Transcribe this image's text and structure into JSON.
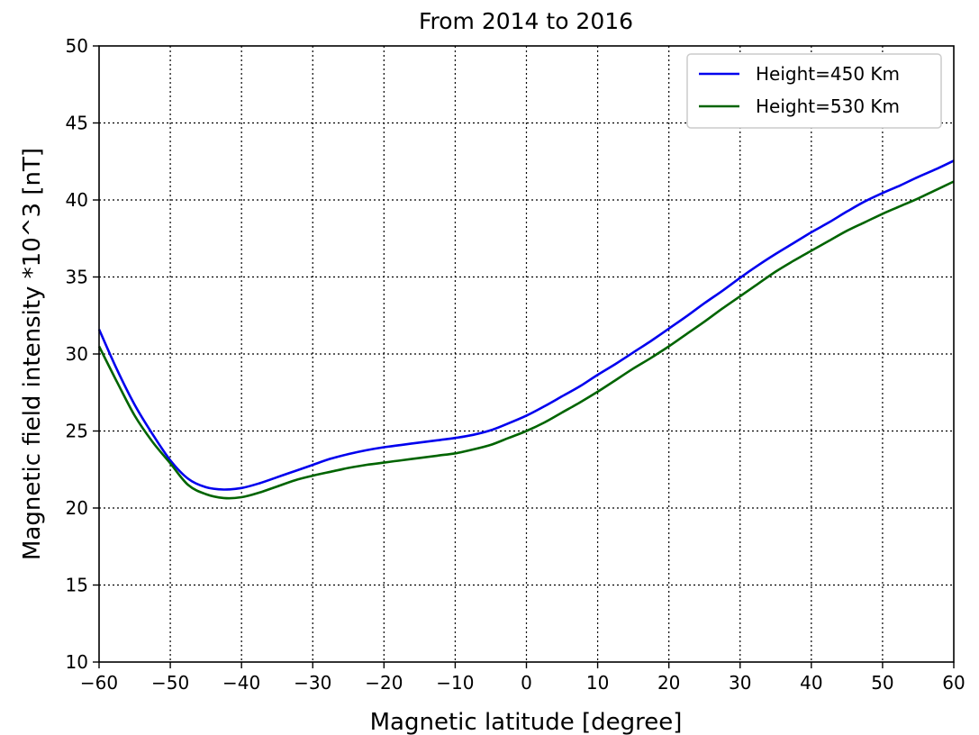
{
  "chart_data": {
    "type": "line",
    "title": "From 2014 to 2016",
    "xlabel": "Magnetic latitude [degree]",
    "ylabel": "Magnetic field intensity *10^3 [nT]",
    "xlim": [
      -60,
      60
    ],
    "ylim": [
      10,
      50
    ],
    "xticks": [
      -60,
      -50,
      -40,
      -30,
      -20,
      -10,
      0,
      10,
      20,
      30,
      40,
      50,
      60
    ],
    "xtick_labels": [
      "−60",
      "−50",
      "−40",
      "−30",
      "−20",
      "−10",
      "0",
      "10",
      "20",
      "30",
      "40",
      "50",
      "60"
    ],
    "yticks": [
      10,
      15,
      20,
      25,
      30,
      35,
      40,
      45,
      50
    ],
    "ytick_labels": [
      "10",
      "15",
      "20",
      "25",
      "30",
      "35",
      "40",
      "45",
      "50"
    ],
    "grid": true,
    "legend_position": "top-right",
    "x": [
      -60,
      -57.5,
      -55,
      -52.5,
      -50,
      -47.5,
      -45,
      -42.5,
      -40,
      -37.5,
      -35,
      -32.5,
      -30,
      -27.5,
      -25,
      -22.5,
      -20,
      -17.5,
      -15,
      -12.5,
      -10,
      -7.5,
      -5,
      -2.5,
      0,
      2.5,
      5,
      7.5,
      10,
      12.5,
      15,
      17.5,
      20,
      22.5,
      25,
      27.5,
      30,
      32.5,
      35,
      37.5,
      40,
      42.5,
      45,
      47.5,
      50,
      52.5,
      55,
      57.5,
      60
    ],
    "series": [
      {
        "name": "Height=450 Km",
        "color": "#0000ee",
        "values": [
          31.6,
          29.0,
          26.7,
          24.8,
          23.1,
          21.9,
          21.35,
          21.2,
          21.3,
          21.6,
          22.0,
          22.4,
          22.8,
          23.2,
          23.5,
          23.75,
          23.95,
          24.1,
          24.25,
          24.4,
          24.55,
          24.75,
          25.05,
          25.5,
          26.0,
          26.6,
          27.25,
          27.9,
          28.65,
          29.35,
          30.1,
          30.85,
          31.65,
          32.45,
          33.3,
          34.1,
          34.95,
          35.75,
          36.5,
          37.2,
          37.9,
          38.55,
          39.25,
          39.9,
          40.45,
          40.95,
          41.5,
          42.0,
          42.55
        ]
      },
      {
        "name": "Height=530 Km",
        "color": "#006400",
        "values": [
          30.5,
          28.2,
          26.0,
          24.3,
          22.9,
          21.5,
          20.9,
          20.65,
          20.7,
          21.0,
          21.4,
          21.8,
          22.1,
          22.35,
          22.6,
          22.8,
          22.95,
          23.1,
          23.25,
          23.4,
          23.55,
          23.8,
          24.1,
          24.55,
          25.0,
          25.55,
          26.2,
          26.85,
          27.55,
          28.3,
          29.05,
          29.75,
          30.5,
          31.3,
          32.1,
          32.95,
          33.75,
          34.55,
          35.35,
          36.05,
          36.7,
          37.35,
          38.0,
          38.55,
          39.1,
          39.6,
          40.1,
          40.65,
          41.2
        ]
      }
    ]
  }
}
